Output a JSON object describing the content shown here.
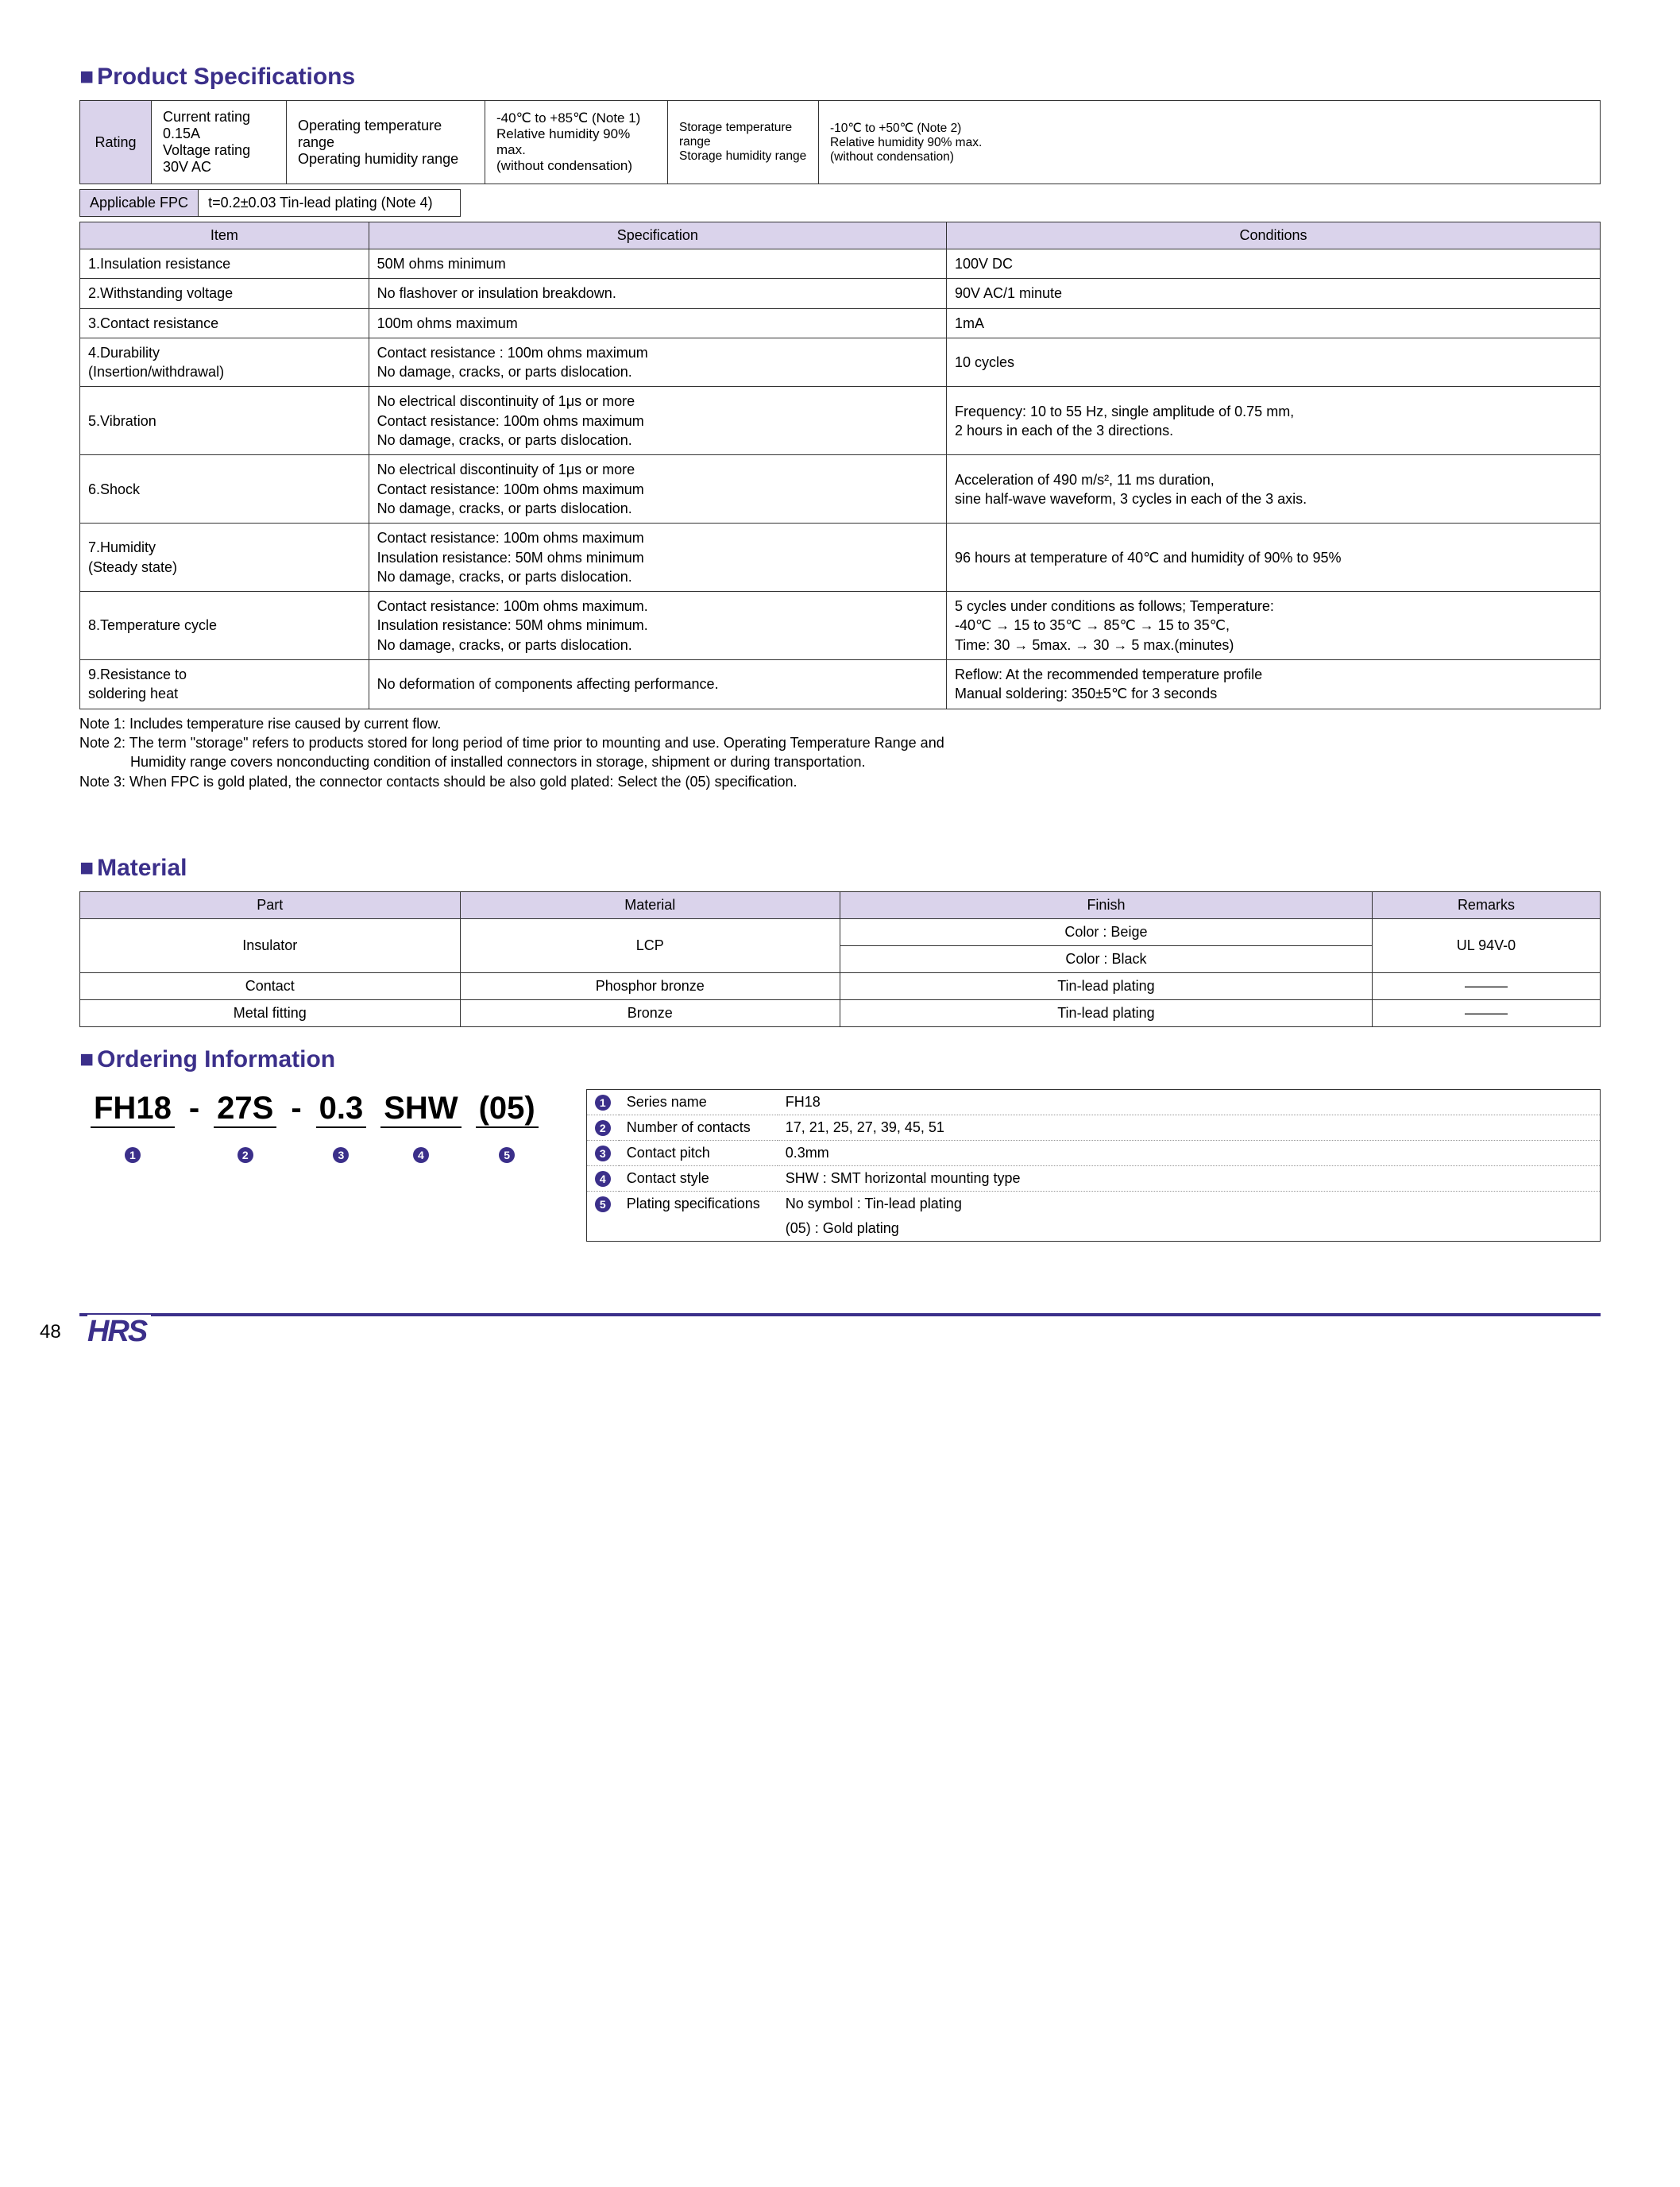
{
  "sections": {
    "spec_title": "Product Specifications",
    "material_title": "Material",
    "ordering_title": "Ordering Information"
  },
  "rating": {
    "label": "Rating",
    "current": "Current rating  0.15A",
    "voltage": "Voltage rating  30V AC",
    "op_temp_lbl": "Operating temperature range",
    "op_hum_lbl": "Operating humidity range",
    "op_temp_val": "-40℃ to +85℃ (Note 1)",
    "op_hum_val": "Relative humidity 90% max.\n(without condensation)",
    "st_temp_lbl": "Storage temperature range",
    "st_hum_lbl": "Storage humidity range",
    "st_temp_val": "-10℃ to +50℃ (Note 2)",
    "st_hum_val": "Relative humidity 90% max.\n(without condensation)"
  },
  "fpc": {
    "label": "Applicable FPC",
    "value": "t=0.2±0.03    Tin-lead plating (Note 4)"
  },
  "spec_headers": {
    "item": "Item",
    "spec": "Specification",
    "cond": "Conditions"
  },
  "spec_rows": [
    {
      "item": "1.Insulation resistance",
      "spec": "50M ohms minimum",
      "cond": "100V DC"
    },
    {
      "item": "2.Withstanding voltage",
      "spec": "No flashover or insulation breakdown.",
      "cond": "90V AC/1 minute"
    },
    {
      "item": "3.Contact resistance",
      "spec": "100m ohms maximum",
      "cond": "1mA"
    },
    {
      "item": "4.Durability\n   (Insertion/withdrawal)",
      "spec": "Contact resistance : 100m ohms maximum\nNo damage, cracks, or parts dislocation.",
      "cond": "10 cycles"
    },
    {
      "item": "5.Vibration",
      "spec": "No electrical discontinuity of 1μs or more\nContact resistance: 100m ohms maximum\nNo damage, cracks, or parts dislocation.",
      "cond": "Frequency: 10 to 55 Hz, single amplitude of 0.75 mm,\n2 hours in each of the 3 directions."
    },
    {
      "item": "6.Shock",
      "spec": "No electrical discontinuity of 1μs or more\nContact resistance: 100m ohms maximum\nNo damage, cracks, or parts dislocation.",
      "cond": "Acceleration of 490 m/s², 11 ms duration,\nsine half-wave waveform, 3 cycles in each of the 3 axis."
    },
    {
      "item": "7.Humidity\n   (Steady state)",
      "spec": "Contact resistance: 100m ohms maximum\nInsulation resistance: 50M ohms minimum\nNo damage, cracks, or parts dislocation.",
      "cond": "96 hours at temperature of 40℃ and humidity of 90% to 95%"
    },
    {
      "item": "8.Temperature cycle",
      "spec": "Contact resistance: 100m ohms maximum.\nInsulation resistance: 50M ohms minimum.\nNo damage, cracks, or parts dislocation.",
      "cond": " 5 cycles under conditions as follows; Temperature:\n -40℃ → 15 to 35℃ → 85℃ → 15 to 35℃,\n Time: 30 → 5max. → 30 → 5 max.(minutes)"
    },
    {
      "item": "9.Resistance to\n   soldering heat",
      "spec": "No deformation of components affecting performance.",
      "cond": "Reflow: At the recommended temperature profile\nManual soldering: 350±5℃ for 3 seconds"
    }
  ],
  "notes": [
    "Note 1: Includes temperature rise caused by current flow.",
    "Note 2: The term \"storage\" refers to products stored for long period of time prior to mounting and use. Operating Temperature Range and",
    "Humidity range covers nonconducting condition of installed connectors in storage, shipment or during transportation.",
    "Note 3: When FPC is gold plated, the connector contacts should be also gold plated: Select the (05) specification."
  ],
  "material": {
    "headers": {
      "part": "Part",
      "material": "Material",
      "finish": "Finish",
      "remarks": "Remarks"
    },
    "rows": [
      {
        "part": "Insulator",
        "material": "LCP",
        "finish1": "Color : Beige",
        "finish2": "Color : Black",
        "remarks": "UL 94V-0"
      },
      {
        "part": "Contact",
        "material": "Phosphor bronze",
        "finish": "Tin-lead plating",
        "remarks": "———"
      },
      {
        "part": "Metal fitting",
        "material": "Bronze",
        "finish": "Tin-lead plating",
        "remarks": "———"
      }
    ]
  },
  "ordering": {
    "pn": {
      "p1": "FH18",
      "p2": "27S",
      "p3": "0.3",
      "p4": "SHW",
      "p5": "(05)"
    },
    "legend": [
      {
        "n": "1",
        "label": "Series name",
        "val": "FH18"
      },
      {
        "n": "2",
        "label": "Number of contacts",
        "val": "17, 21, 25, 27, 39, 45, 51"
      },
      {
        "n": "3",
        "label": "Contact pitch",
        "val": "0.3mm"
      },
      {
        "n": "4",
        "label": "Contact style",
        "val": "SHW : SMT horizontal mounting type"
      },
      {
        "n": "5",
        "label": "Plating specifications",
        "val": "No symbol : Tin-lead plating"
      },
      {
        "n": "",
        "label": "",
        "val": "(05) : Gold plating"
      }
    ]
  },
  "page_number": "48",
  "logo": "HRS"
}
